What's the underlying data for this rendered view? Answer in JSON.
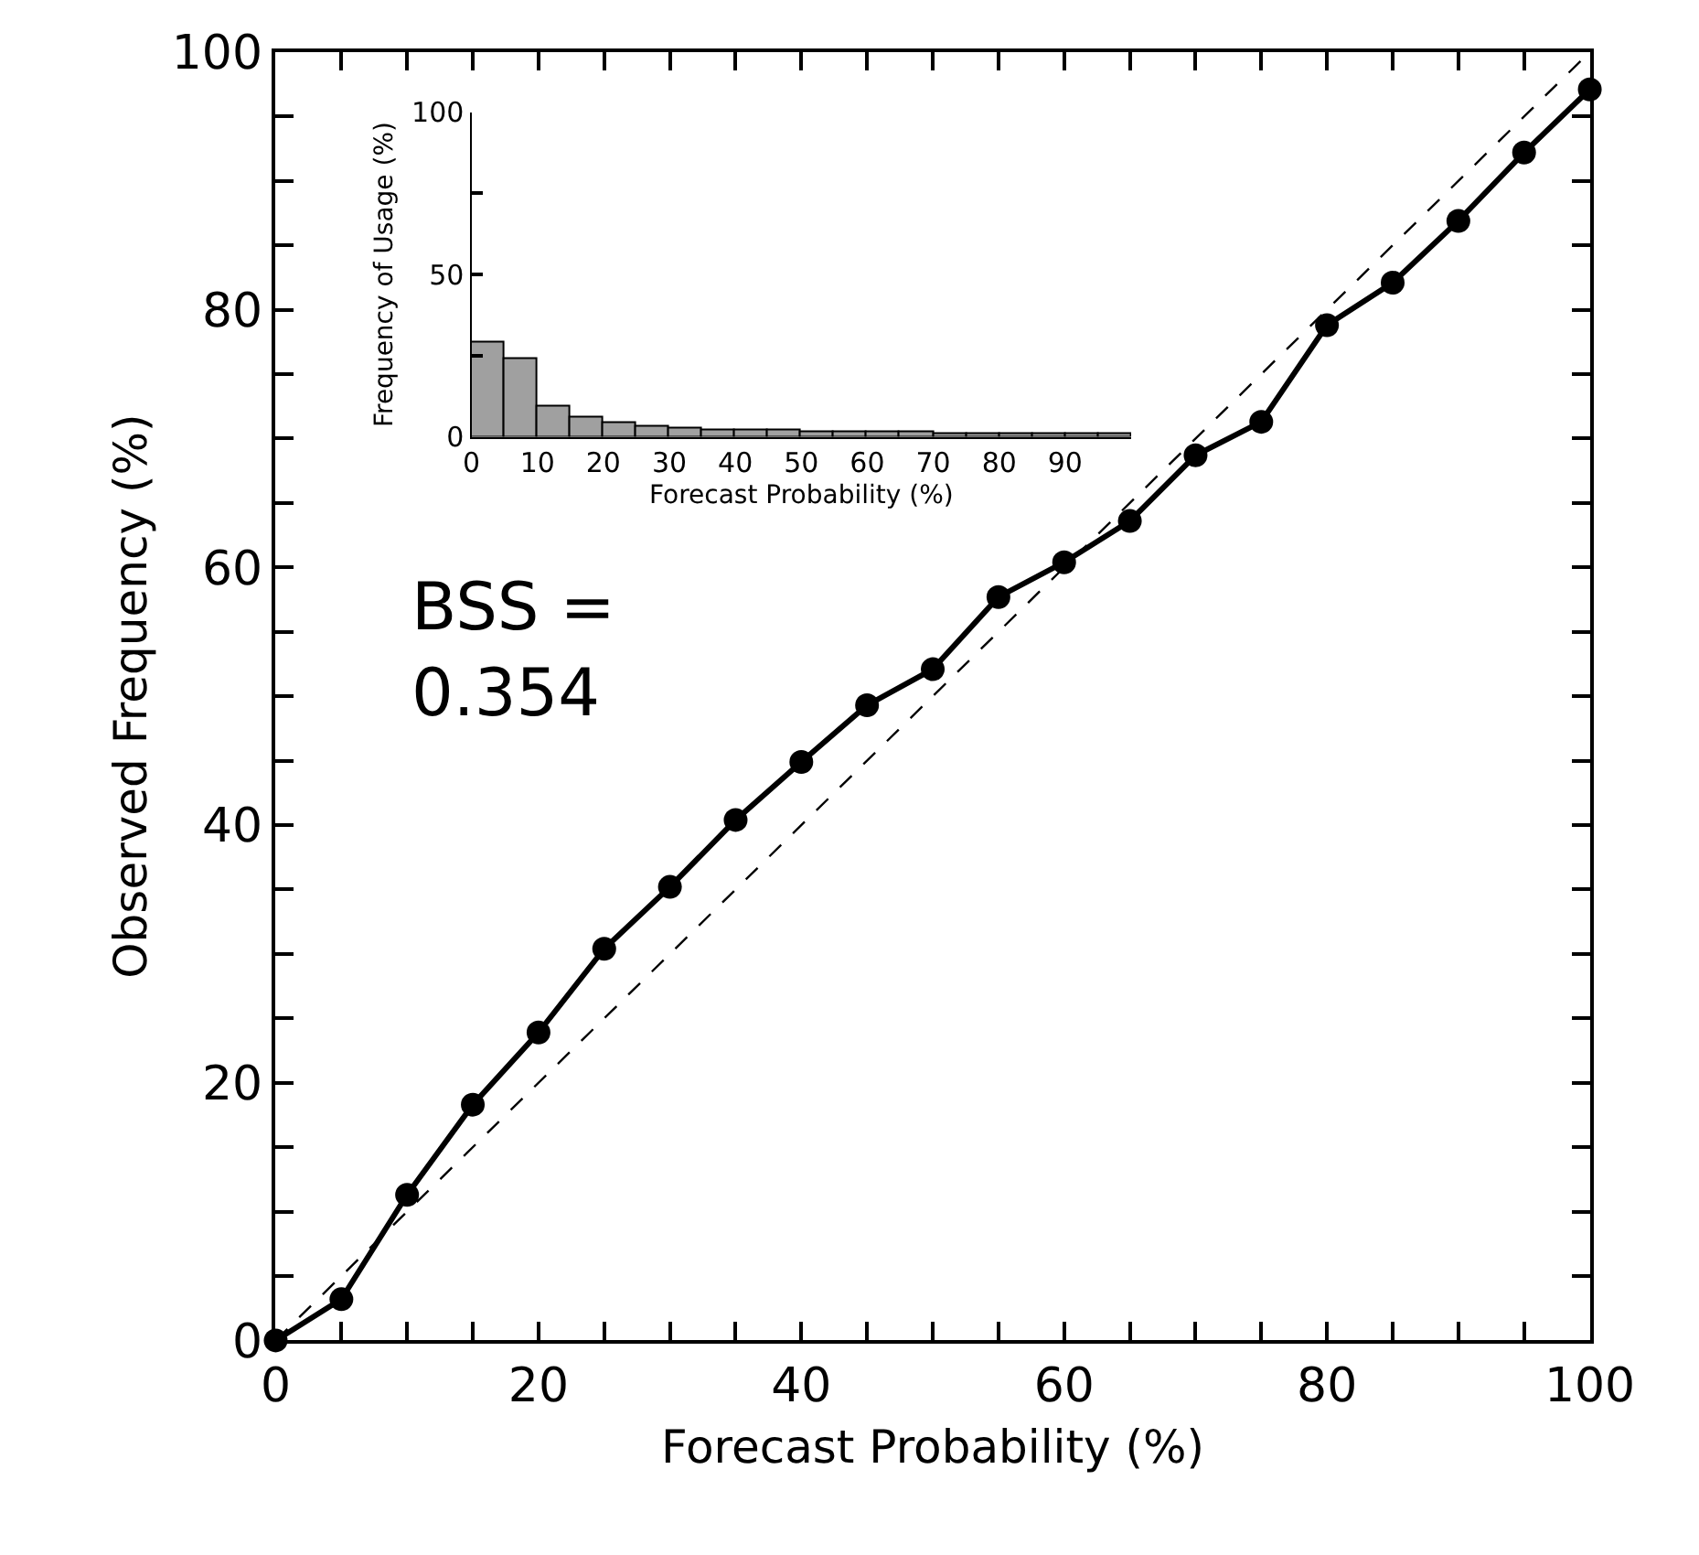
{
  "chart_data": [
    {
      "type": "line",
      "xlabel": "Forecast Probability (%)",
      "ylabel": "Observed Frequency (%)",
      "x": [
        0,
        5,
        10,
        15,
        20,
        25,
        30,
        35,
        40,
        45,
        50,
        55,
        60,
        65,
        70,
        75,
        80,
        85,
        90,
        95,
        100
      ],
      "series": [
        {
          "color": "#000000",
          "marker": "circle",
          "line_style": "solid",
          "values": [
            0,
            3.2,
            11.3,
            18.3,
            23.9,
            30.4,
            35.2,
            40.4,
            44.9,
            49.3,
            52.1,
            57.7,
            60.4,
            63.6,
            68.7,
            71.3,
            78.8,
            82.1,
            86.9,
            92.2,
            97.1
          ]
        },
        {
          "color": "#000000",
          "marker": "none",
          "line_style": "dashed",
          "x": [
            0,
            100
          ],
          "values": [
            0,
            100
          ]
        }
      ],
      "xlim": [
        0,
        100
      ],
      "ylim": [
        0,
        100
      ],
      "xticks": [
        0,
        {
          "value": 5,
          "label": null
        },
        {
          "value": 10,
          "label": null
        },
        {
          "value": 15,
          "label": null
        },
        20,
        {
          "value": 25,
          "label": null
        },
        {
          "value": 30,
          "label": null
        },
        {
          "value": 35,
          "label": null
        },
        40,
        {
          "value": 45,
          "label": null
        },
        {
          "value": 50,
          "label": null
        },
        {
          "value": 55,
          "label": null
        },
        60,
        {
          "value": 65,
          "label": null
        },
        {
          "value": 70,
          "label": null
        },
        {
          "value": 75,
          "label": null
        },
        80,
        {
          "value": 85,
          "label": null
        },
        {
          "value": 90,
          "label": null
        },
        {
          "value": 95,
          "label": null
        },
        100
      ],
      "yticks": [
        0,
        {
          "value": 5,
          "label": null
        },
        {
          "value": 10,
          "label": null
        },
        {
          "value": 15,
          "label": null
        },
        20,
        {
          "value": 25,
          "label": null
        },
        {
          "value": 30,
          "label": null
        },
        {
          "value": 35,
          "label": null
        },
        40,
        {
          "value": 45,
          "label": null
        },
        {
          "value": 50,
          "label": null
        },
        {
          "value": 55,
          "label": null
        },
        60,
        {
          "value": 65,
          "label": null
        },
        {
          "value": 70,
          "label": null
        },
        {
          "value": 75,
          "label": null
        },
        80,
        {
          "value": 85,
          "label": null
        },
        {
          "value": 90,
          "label": null
        },
        {
          "value": 95,
          "label": null
        },
        100
      ],
      "annotations": [
        "BSS =\n0.354"
      ]
    },
    {
      "type": "histogram",
      "xlabel": "Forecast Probability (%)",
      "ylabel": "Frequency of Usage (%)",
      "bins": [
        0,
        5,
        10,
        15,
        20,
        25,
        30,
        35,
        40,
        45,
        50,
        55,
        60,
        65,
        70,
        75,
        80,
        85,
        90,
        95,
        100
      ],
      "values": [
        29,
        23.9,
        9.4,
        5.8,
        4.2,
        3.3,
        2.5,
        2.2,
        2.0,
        1.8,
        1.4,
        1.3,
        1.2,
        1.2,
        1.1,
        1.1,
        1.0,
        1.0,
        1.0,
        1.0
      ],
      "color": "#a0a0a0",
      "xlim": [
        0,
        100
      ],
      "ylim": [
        0,
        100
      ],
      "xticks": [
        0,
        10,
        20,
        30,
        40,
        50,
        60,
        70,
        80,
        90
      ],
      "yticks": [
        0,
        {
          "value": 25,
          "label": null
        },
        50,
        {
          "value": 75,
          "label": null
        },
        100
      ]
    }
  ]
}
